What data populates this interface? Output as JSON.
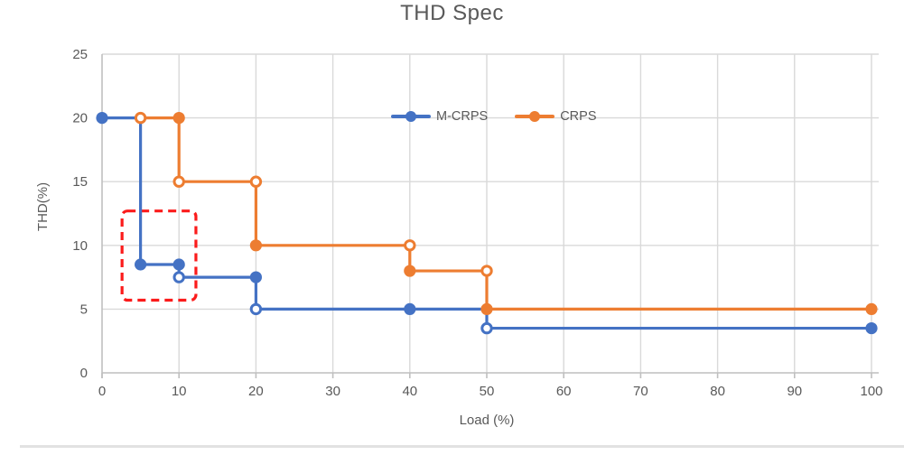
{
  "chart_data": {
    "type": "line",
    "subtype": "step",
    "title": "THD Spec",
    "xlabel": "Load (%)",
    "ylabel": "THD(%)",
    "xlim": [
      0,
      100
    ],
    "ylim": [
      0,
      25
    ],
    "x_ticks": [
      0,
      10,
      20,
      30,
      40,
      50,
      60,
      70,
      80,
      90,
      100
    ],
    "y_ticks": [
      0,
      5,
      10,
      15,
      20,
      25
    ],
    "grid": true,
    "legend_position": "top-center-inside",
    "colors": {
      "grid": "#d9d9d9",
      "axis": "#bfbfbf",
      "text": "#595959",
      "annotation": "#fb1b1b"
    },
    "series": [
      {
        "name": "M-CRPS",
        "color": "#4472c4",
        "points": [
          {
            "x": 0,
            "y": 20,
            "marker": "filled"
          },
          {
            "x": 5,
            "y": 20,
            "marker": "none"
          },
          {
            "x": 5,
            "y": 8.5,
            "marker": "filled"
          },
          {
            "x": 10,
            "y": 8.5,
            "marker": "filled"
          },
          {
            "x": 10,
            "y": 7.5,
            "marker": "open"
          },
          {
            "x": 20,
            "y": 7.5,
            "marker": "filled"
          },
          {
            "x": 20,
            "y": 5,
            "marker": "open"
          },
          {
            "x": 40,
            "y": 5,
            "marker": "filled"
          },
          {
            "x": 50,
            "y": 5,
            "marker": "none"
          },
          {
            "x": 50,
            "y": 3.5,
            "marker": "open"
          },
          {
            "x": 100,
            "y": 3.5,
            "marker": "filled"
          }
        ]
      },
      {
        "name": "CRPS",
        "color": "#ed7d31",
        "points": [
          {
            "x": 5,
            "y": 20,
            "marker": "open"
          },
          {
            "x": 10,
            "y": 20,
            "marker": "filled"
          },
          {
            "x": 10,
            "y": 15,
            "marker": "open"
          },
          {
            "x": 20,
            "y": 15,
            "marker": "open"
          },
          {
            "x": 20,
            "y": 10,
            "marker": "filled"
          },
          {
            "x": 40,
            "y": 10,
            "marker": "open"
          },
          {
            "x": 40,
            "y": 8,
            "marker": "filled"
          },
          {
            "x": 50,
            "y": 8,
            "marker": "open"
          },
          {
            "x": 50,
            "y": 5,
            "marker": "filled"
          },
          {
            "x": 100,
            "y": 5,
            "marker": "filled"
          }
        ]
      }
    ],
    "annotations": [
      {
        "type": "dashed-rect",
        "x0": 2.6,
        "x1": 12.2,
        "y0": 5.7,
        "y1": 12.7,
        "color": "#fb1b1b"
      }
    ]
  }
}
